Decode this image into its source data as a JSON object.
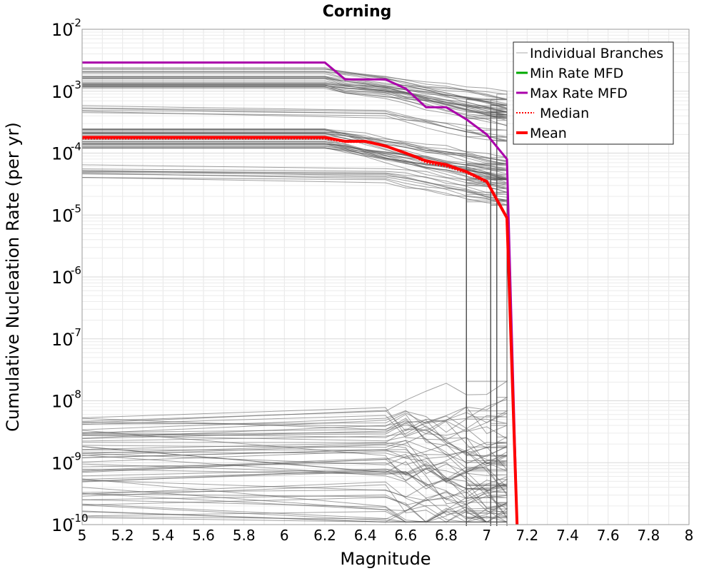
{
  "chart_data": {
    "type": "line",
    "title": "Corning",
    "xlabel": "Magnitude",
    "ylabel": "Cumulative Nucleation Rate (per yr)",
    "xlim": [
      5,
      8
    ],
    "ylim": [
      1e-10,
      0.01
    ],
    "yscale": "log",
    "grid": true,
    "legend_position": "top-right",
    "x_ticks": [
      "5",
      "5.2",
      "5.4",
      "5.6",
      "5.8",
      "6",
      "6.2",
      "6.4",
      "6.6",
      "6.8",
      "7",
      "7.2",
      "7.4",
      "7.6",
      "7.8",
      "8"
    ],
    "y_ticks": [
      {
        "base": "10",
        "exp": "-2"
      },
      {
        "base": "10",
        "exp": "-3"
      },
      {
        "base": "10",
        "exp": "-4"
      },
      {
        "base": "10",
        "exp": "-5"
      },
      {
        "base": "10",
        "exp": "-6"
      },
      {
        "base": "10",
        "exp": "-7"
      },
      {
        "base": "10",
        "exp": "-8"
      },
      {
        "base": "10",
        "exp": "-9"
      },
      {
        "base": "10",
        "exp": "-10"
      }
    ],
    "legend": [
      {
        "label": "Individual Branches",
        "color": "#555555",
        "style": "thin"
      },
      {
        "label": "Min Rate MFD",
        "color": "#00aa00",
        "style": "solid"
      },
      {
        "label": "Max Rate MFD",
        "color": "#aa00aa",
        "style": "solid"
      },
      {
        "label": "Median",
        "color": "#ff0000",
        "style": "dotted"
      },
      {
        "label": "Mean",
        "color": "#ff0000",
        "style": "thick"
      }
    ],
    "series": [
      {
        "name": "Max Rate MFD",
        "color": "#aa00aa",
        "x": [
          5.0,
          6.2,
          6.3,
          6.5,
          6.6,
          6.7,
          6.8,
          6.9,
          7.0,
          7.1,
          7.15
        ],
        "y": [
          0.0029,
          0.0029,
          0.00155,
          0.00155,
          0.0011,
          0.00055,
          0.00055,
          0.00035,
          0.0002,
          8e-05,
          1e-10
        ]
      },
      {
        "name": "Median",
        "color": "#ff0000",
        "x": [
          5.0,
          6.2,
          6.3,
          6.4,
          6.5,
          6.6,
          6.7,
          6.8,
          6.9,
          7.0,
          7.1,
          7.15
        ],
        "y": [
          0.00017,
          0.00017,
          0.00015,
          0.00015,
          0.00013,
          0.0001,
          7e-05,
          6e-05,
          4.8e-05,
          3.3e-05,
          8.5e-06,
          1e-10
        ]
      },
      {
        "name": "Mean",
        "color": "#ff0000",
        "x": [
          5.0,
          6.2,
          6.3,
          6.4,
          6.5,
          6.6,
          6.7,
          6.8,
          6.9,
          7.0,
          7.1,
          7.15
        ],
        "y": [
          0.00018,
          0.00018,
          0.000155,
          0.000155,
          0.00013,
          0.0001,
          7.5e-05,
          6.5e-05,
          5e-05,
          3.5e-05,
          9e-06,
          1e-10
        ]
      },
      {
        "name": "Individual Branches",
        "color": "#555555",
        "groups": [
          {
            "y_level_range": [
              0.0011,
              0.0025
            ],
            "x": [
              5.0,
              6.2,
              6.3,
              6.5,
              6.6,
              6.7,
              6.8,
              6.9,
              7.0,
              7.1
            ],
            "count": 30
          },
          {
            "y_level_range": [
              0.00045,
              0.0006
            ],
            "x": [
              5.0,
              6.5,
              6.6,
              6.7,
              6.8,
              6.9,
              7.0,
              7.1
            ],
            "count": 6
          },
          {
            "y_level_range": [
              0.00011,
              0.00025
            ],
            "x": [
              5.0,
              6.2,
              6.3,
              6.4,
              6.5,
              6.6,
              6.7,
              6.8,
              6.9,
              7.0,
              7.1
            ],
            "count": 30
          },
          {
            "y_level_range": [
              4e-05,
              6.5e-05
            ],
            "x": [
              5.0,
              6.5,
              6.6,
              6.7,
              6.8,
              6.9,
              7.0,
              7.1
            ],
            "count": 10
          },
          {
            "y_level_range": [
              1.2e-10,
              6e-09
            ],
            "x": [
              5.0,
              6.5,
              6.6,
              6.7,
              6.8,
              6.9,
              7.0,
              7.1
            ],
            "count": 60
          }
        ],
        "drop_magnitudes": [
          6.9,
          7.02,
          7.05,
          7.1
        ]
      }
    ]
  }
}
